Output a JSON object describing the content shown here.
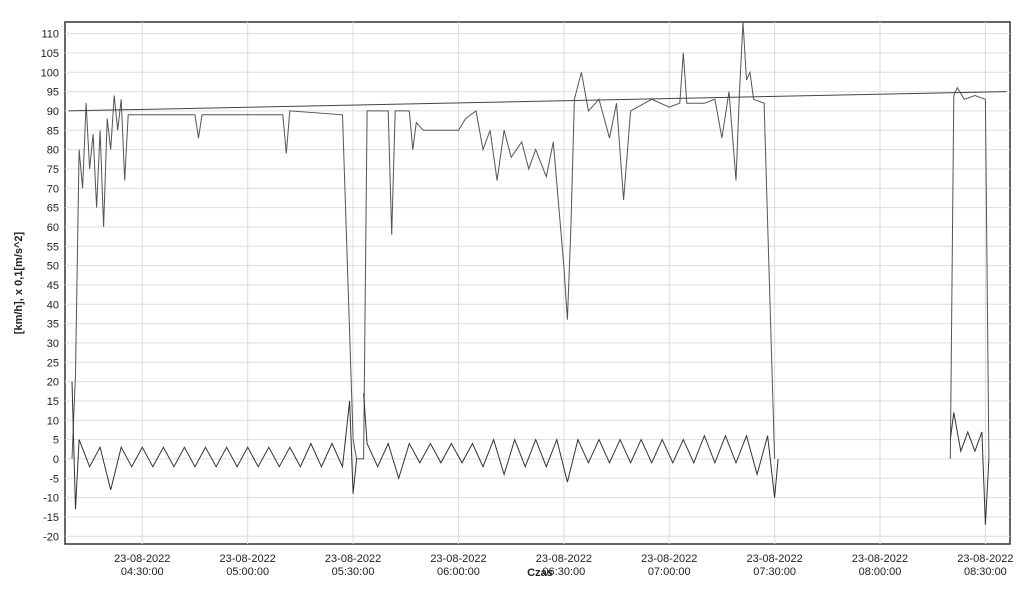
{
  "chart_data": {
    "type": "line",
    "ylabel": "[km/h], x 0,1[m/s^2]",
    "xlabel": "Czas",
    "xlim": [
      "23-08-2022 04:08:00",
      "23-08-2022 08:37:00"
    ],
    "xticks": [
      "23-08-2022 04:30:00",
      "23-08-2022 05:00:00",
      "23-08-2022 05:30:00",
      "23-08-2022 06:00:00",
      "23-08-2022 06:30:00",
      "23-08-2022 07:00:00",
      "23-08-2022 07:30:00",
      "23-08-2022 08:00:00",
      "23-08-2022 08:30:00"
    ],
    "ylim": [
      -22,
      113
    ],
    "yticks": [
      -20,
      -15,
      -10,
      -5,
      0,
      5,
      10,
      15,
      20,
      25,
      30,
      35,
      40,
      45,
      50,
      55,
      60,
      65,
      70,
      75,
      80,
      85,
      90,
      95,
      100,
      105,
      110
    ],
    "grid": true,
    "series": [
      {
        "color": "#555555",
        "x": [
          "23-08-2022 04:10:00",
          "23-08-2022 04:11:00",
          "23-08-2022 04:12:00",
          "23-08-2022 04:13:00",
          "23-08-2022 04:14:00",
          "23-08-2022 04:15:00",
          "23-08-2022 04:16:00",
          "23-08-2022 04:17:00",
          "23-08-2022 04:18:00",
          "23-08-2022 04:19:00",
          "23-08-2022 04:20:00",
          "23-08-2022 04:21:00",
          "23-08-2022 04:22:00",
          "23-08-2022 04:23:00",
          "23-08-2022 04:24:00",
          "23-08-2022 04:25:00",
          "23-08-2022 04:26:00",
          "23-08-2022 04:45:00",
          "23-08-2022 04:46:00",
          "23-08-2022 04:47:00",
          "23-08-2022 05:10:00",
          "23-08-2022 05:11:00",
          "23-08-2022 05:12:00",
          "23-08-2022 05:27:00",
          "23-08-2022 05:30:00",
          "23-08-2022 05:31:00",
          "23-08-2022 05:33:00",
          "23-08-2022 05:34:00",
          "23-08-2022 05:40:00",
          "23-08-2022 05:41:00",
          "23-08-2022 05:42:00",
          "23-08-2022 05:46:00",
          "23-08-2022 05:47:00",
          "23-08-2022 05:48:00",
          "23-08-2022 05:50:00",
          "23-08-2022 06:00:00",
          "23-08-2022 06:02:00",
          "23-08-2022 06:05:00",
          "23-08-2022 06:07:00",
          "23-08-2022 06:09:00",
          "23-08-2022 06:11:00",
          "23-08-2022 06:13:00",
          "23-08-2022 06:15:00",
          "23-08-2022 06:18:00",
          "23-08-2022 06:20:00",
          "23-08-2022 06:22:00",
          "23-08-2022 06:25:00",
          "23-08-2022 06:27:00",
          "23-08-2022 06:30:00",
          "23-08-2022 06:31:00",
          "23-08-2022 06:32:00",
          "23-08-2022 06:33:00",
          "23-08-2022 06:35:00",
          "23-08-2022 06:37:00",
          "23-08-2022 06:40:00",
          "23-08-2022 06:43:00",
          "23-08-2022 06:45:00",
          "23-08-2022 06:47:00",
          "23-08-2022 06:49:00",
          "23-08-2022 06:55:00",
          "23-08-2022 07:00:00",
          "23-08-2022 07:03:00",
          "23-08-2022 07:04:00",
          "23-08-2022 07:05:00",
          "23-08-2022 07:10:00",
          "23-08-2022 07:13:00",
          "23-08-2022 07:15:00",
          "23-08-2022 07:17:00",
          "23-08-2022 07:19:00",
          "23-08-2022 07:20:00",
          "23-08-2022 07:21:00",
          "23-08-2022 07:22:00",
          "23-08-2022 07:23:00",
          "23-08-2022 07:24:00",
          "23-08-2022 07:27:00",
          "23-08-2022 07:30:00",
          "23-08-2022 07:50:00",
          "23-08-2022 08:20:00",
          "23-08-2022 08:21:00",
          "23-08-2022 08:22:00",
          "23-08-2022 08:24:00",
          "23-08-2022 08:27:00",
          "23-08-2022 08:30:00",
          "23-08-2022 08:31:00"
        ],
        "values": [
          0,
          22,
          80,
          70,
          92,
          75,
          84,
          65,
          85,
          60,
          88,
          80,
          94,
          85,
          93,
          72,
          89,
          89,
          83,
          89,
          89,
          79,
          90,
          89,
          5,
          0,
          0,
          90,
          90,
          58,
          90,
          90,
          80,
          87,
          85,
          85,
          88,
          90,
          80,
          85,
          72,
          85,
          78,
          82,
          75,
          80,
          73,
          82,
          50,
          36,
          60,
          93,
          100,
          90,
          93,
          83,
          92,
          67,
          90,
          93,
          91,
          92,
          105,
          92,
          92,
          93,
          83,
          95,
          72,
          95,
          113,
          98,
          100,
          93,
          92,
          0,
          null,
          0,
          94,
          96,
          93,
          94,
          93,
          0
        ]
      },
      {
        "color": "#333333",
        "x": [
          "23-08-2022 04:10:00",
          "23-08-2022 04:11:00",
          "23-08-2022 04:12:00",
          "23-08-2022 04:15:00",
          "23-08-2022 04:18:00",
          "23-08-2022 04:21:00",
          "23-08-2022 04:24:00",
          "23-08-2022 04:27:00",
          "23-08-2022 04:30:00",
          "23-08-2022 04:33:00",
          "23-08-2022 04:36:00",
          "23-08-2022 04:39:00",
          "23-08-2022 04:42:00",
          "23-08-2022 04:45:00",
          "23-08-2022 04:48:00",
          "23-08-2022 04:51:00",
          "23-08-2022 04:54:00",
          "23-08-2022 04:57:00",
          "23-08-2022 05:00:00",
          "23-08-2022 05:03:00",
          "23-08-2022 05:06:00",
          "23-08-2022 05:09:00",
          "23-08-2022 05:12:00",
          "23-08-2022 05:15:00",
          "23-08-2022 05:18:00",
          "23-08-2022 05:21:00",
          "23-08-2022 05:24:00",
          "23-08-2022 05:27:00",
          "23-08-2022 05:29:00",
          "23-08-2022 05:30:00",
          "23-08-2022 05:31:00",
          "23-08-2022 05:32:00",
          "23-08-2022 05:33:00",
          "23-08-2022 05:34:00",
          "23-08-2022 05:37:00",
          "23-08-2022 05:40:00",
          "23-08-2022 05:43:00",
          "23-08-2022 05:46:00",
          "23-08-2022 05:49:00",
          "23-08-2022 05:52:00",
          "23-08-2022 05:55:00",
          "23-08-2022 05:58:00",
          "23-08-2022 06:01:00",
          "23-08-2022 06:04:00",
          "23-08-2022 06:07:00",
          "23-08-2022 06:10:00",
          "23-08-2022 06:13:00",
          "23-08-2022 06:16:00",
          "23-08-2022 06:19:00",
          "23-08-2022 06:22:00",
          "23-08-2022 06:25:00",
          "23-08-2022 06:28:00",
          "23-08-2022 06:31:00",
          "23-08-2022 06:34:00",
          "23-08-2022 06:37:00",
          "23-08-2022 06:40:00",
          "23-08-2022 06:43:00",
          "23-08-2022 06:46:00",
          "23-08-2022 06:49:00",
          "23-08-2022 06:52:00",
          "23-08-2022 06:55:00",
          "23-08-2022 06:58:00",
          "23-08-2022 07:01:00",
          "23-08-2022 07:04:00",
          "23-08-2022 07:07:00",
          "23-08-2022 07:10:00",
          "23-08-2022 07:13:00",
          "23-08-2022 07:16:00",
          "23-08-2022 07:19:00",
          "23-08-2022 07:22:00",
          "23-08-2022 07:25:00",
          "23-08-2022 07:28:00",
          "23-08-2022 07:30:00",
          "23-08-2022 07:31:00",
          "23-08-2022 07:50:00",
          "23-08-2022 08:20:00",
          "23-08-2022 08:21:00",
          "23-08-2022 08:23:00",
          "23-08-2022 08:25:00",
          "23-08-2022 08:27:00",
          "23-08-2022 08:29:00",
          "23-08-2022 08:30:00",
          "23-08-2022 08:31:00"
        ],
        "values": [
          20,
          -13,
          5,
          -2,
          3,
          -8,
          3,
          -2,
          3,
          -2,
          3,
          -2,
          3,
          -2,
          3,
          -2,
          3,
          -2,
          3,
          -2,
          3,
          -2,
          3,
          -2,
          4,
          -2,
          4,
          -2,
          15,
          -9,
          0,
          null,
          17,
          4,
          -2,
          4,
          -5,
          4,
          -1,
          4,
          -1,
          4,
          -1,
          4,
          -2,
          5,
          -4,
          5,
          -2,
          5,
          -2,
          5,
          -6,
          5,
          -1,
          5,
          -1,
          5,
          -1,
          5,
          -1,
          5,
          -1,
          5,
          -1,
          6,
          -1,
          6,
          -1,
          6,
          -4,
          6,
          -10,
          0,
          null,
          5,
          12,
          2,
          7,
          2,
          7,
          -17,
          0
        ]
      },
      {
        "color": "#444444",
        "x": [
          "23-08-2022 04:09:00",
          "23-08-2022 08:36:00"
        ],
        "values": [
          90,
          95
        ]
      }
    ]
  }
}
